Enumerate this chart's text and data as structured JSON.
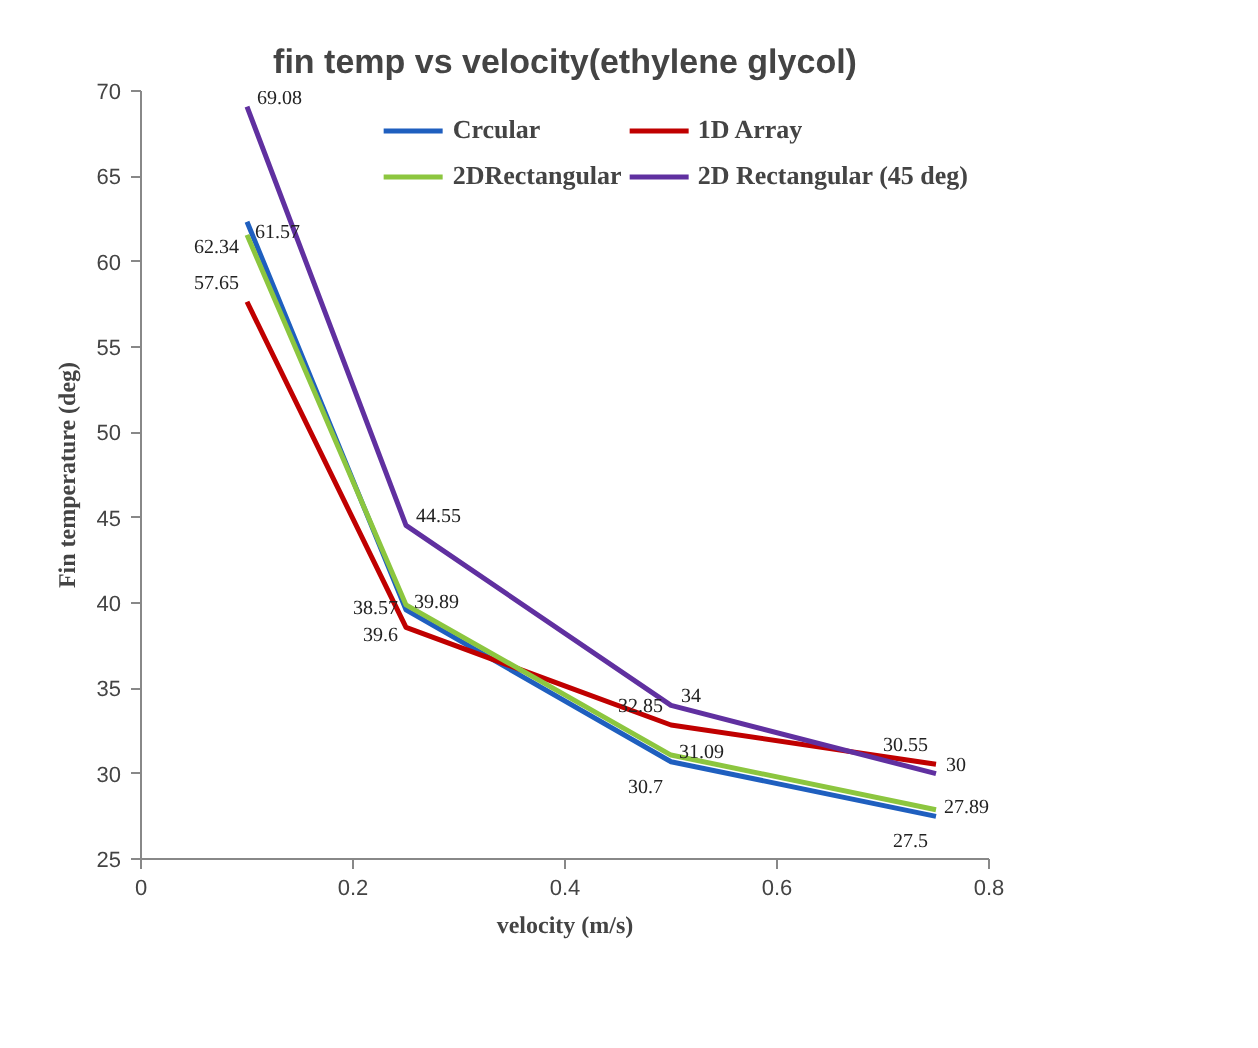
{
  "chart_data": {
    "type": "line",
    "title": "fin temp vs velocity(ethylene glycol)",
    "xlabel": "velocity (m/s)",
    "ylabel": "Fin temperature (deg)",
    "x": [
      0.1,
      0.25,
      0.5,
      0.75
    ],
    "series": [
      {
        "name": "Crcular",
        "color": "#1f5fbf",
        "values": [
          62.34,
          39.6,
          30.7,
          27.5
        ]
      },
      {
        "name": "1D Array",
        "color": "#c00000",
        "values": [
          57.65,
          38.57,
          32.85,
          30.55
        ]
      },
      {
        "name": "2DRectangular",
        "color": "#8cc63f",
        "values": [
          61.57,
          39.89,
          31.09,
          27.89
        ]
      },
      {
        "name": "2D Rectangular (45 deg)",
        "color": "#6030a0",
        "values": [
          69.08,
          44.55,
          34,
          30
        ]
      }
    ],
    "xlim": [
      0,
      0.8
    ],
    "xticks": [
      0,
      0.2,
      0.4,
      0.6,
      0.8
    ],
    "ylim": [
      25,
      70
    ],
    "yticks": [
      25,
      30,
      35,
      40,
      45,
      50,
      55,
      60,
      65,
      70
    ],
    "data_labels": true,
    "legend": "top right",
    "grid": false,
    "marker": "none",
    "line_style": "solid"
  }
}
